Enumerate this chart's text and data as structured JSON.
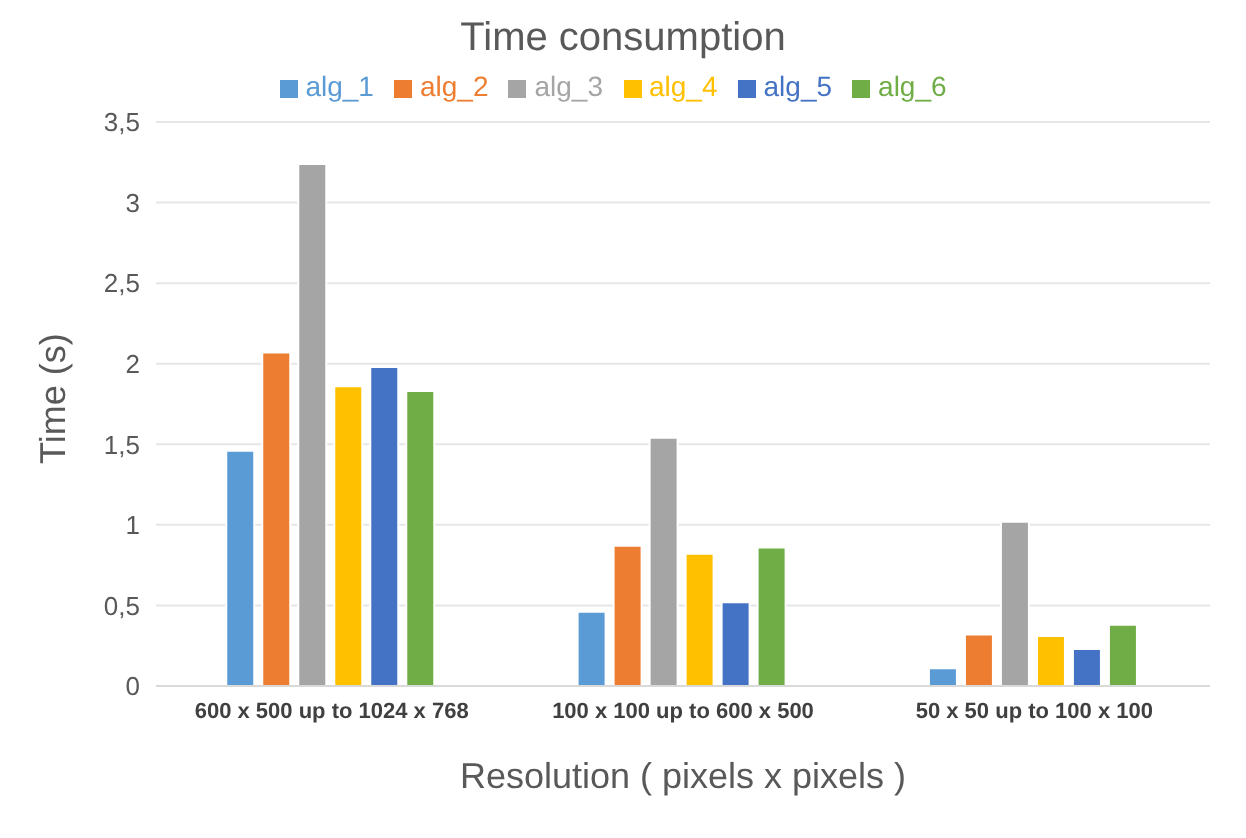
{
  "chart_data": {
    "type": "bar",
    "title": "Time consumption",
    "xlabel": "Resolution ( pixels x pixels )",
    "ylabel": "Time (s)",
    "categories": [
      "600 x 500 up to 1024 x 768",
      "100 x 100 up to 600 x 500",
      "50 x 50 up to 100 x 100"
    ],
    "series": [
      {
        "name": "alg_1",
        "color": "#5b9bd5",
        "values": [
          1.46,
          0.46,
          0.11
        ]
      },
      {
        "name": "alg_2",
        "color": "#ed7d31",
        "values": [
          2.07,
          0.87,
          0.32
        ]
      },
      {
        "name": "alg_3",
        "color": "#a5a5a5",
        "values": [
          3.24,
          1.54,
          1.02
        ]
      },
      {
        "name": "alg_4",
        "color": "#ffc000",
        "values": [
          1.86,
          0.82,
          0.31
        ]
      },
      {
        "name": "alg_5",
        "color": "#4472c4",
        "values": [
          1.98,
          0.52,
          0.23
        ]
      },
      {
        "name": "alg_6",
        "color": "#70ad47",
        "values": [
          1.83,
          0.86,
          0.38
        ]
      }
    ],
    "ylim": [
      0,
      3.5
    ],
    "yticks": [
      0,
      {
        "value": 0.5,
        "label": "0,5"
      },
      1,
      {
        "value": 1.5,
        "label": "1,5"
      },
      2,
      {
        "value": 2.5,
        "label": "2,5"
      },
      3,
      {
        "value": 3.5,
        "label": "3,5"
      }
    ],
    "grid": "y",
    "legend": "top"
  }
}
